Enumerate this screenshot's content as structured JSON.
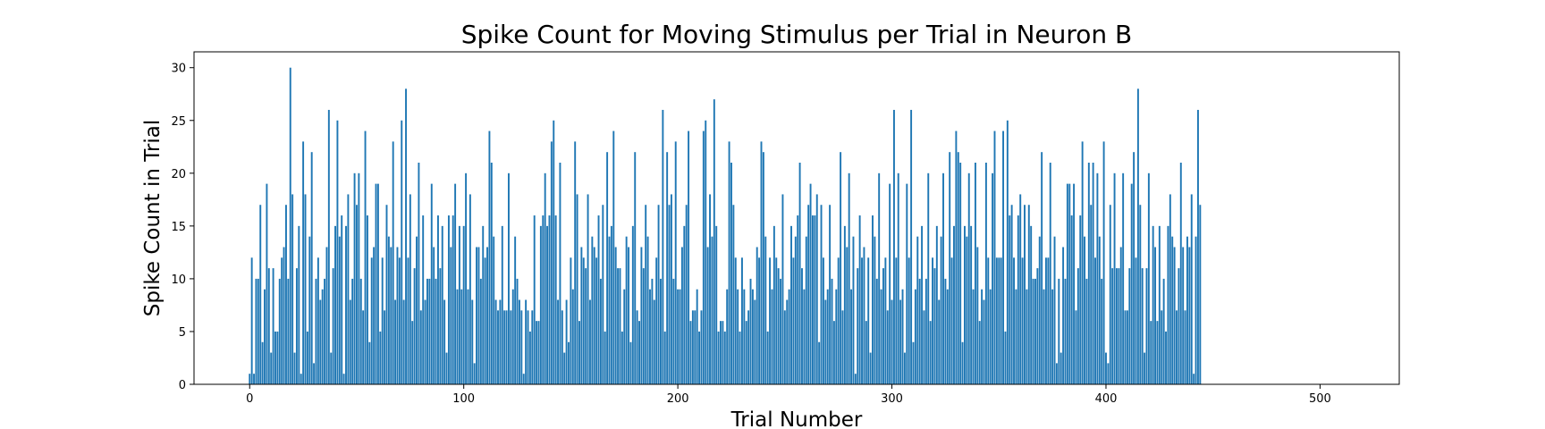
{
  "chart_data": {
    "type": "bar",
    "title": "Spike Count for Moving Stimulus per Trial in Neuron B",
    "xlabel": "Trial Number",
    "ylabel": "Spike Count in Trial",
    "xlim": [
      -26,
      537
    ],
    "ylim": [
      0,
      31.5
    ],
    "x_ticks": [
      0,
      100,
      200,
      300,
      400,
      500
    ],
    "y_ticks": [
      0,
      5,
      10,
      15,
      20,
      25,
      30
    ],
    "bar_color": "#1f77b4",
    "grid": false,
    "x_start": 0,
    "values": [
      1,
      12,
      1,
      10,
      10,
      17,
      4,
      9,
      19,
      11,
      3,
      11,
      5,
      5,
      10,
      12,
      13,
      17,
      10,
      30,
      18,
      3,
      11,
      15,
      1,
      23,
      18,
      5,
      14,
      22,
      2,
      10,
      12,
      8,
      9,
      10,
      13,
      26,
      3,
      11,
      15,
      25,
      14,
      16,
      1,
      15,
      18,
      8,
      10,
      20,
      17,
      20,
      10,
      7,
      24,
      16,
      4,
      12,
      13,
      19,
      19,
      5,
      12,
      7,
      17,
      14,
      13,
      23,
      8,
      13,
      12,
      25,
      8,
      28,
      12,
      18,
      6,
      11,
      14,
      21,
      7,
      16,
      8,
      10,
      10,
      19,
      13,
      10,
      16,
      11,
      15,
      8,
      3,
      16,
      13,
      16,
      19,
      9,
      15,
      9,
      15,
      20,
      9,
      18,
      8,
      2,
      13,
      13,
      10,
      15,
      12,
      13,
      24,
      21,
      14,
      8,
      7,
      8,
      15,
      7,
      7,
      20,
      7,
      9,
      14,
      10,
      8,
      7,
      1,
      8,
      7,
      5,
      7,
      16,
      6,
      6,
      15,
      16,
      20,
      15,
      16,
      23,
      25,
      16,
      8,
      21,
      7,
      3,
      8,
      4,
      12,
      9,
      23,
      18,
      6,
      13,
      12,
      11,
      18,
      8,
      14,
      13,
      12,
      16,
      10,
      17,
      5,
      22,
      14,
      15,
      24,
      13,
      11,
      11,
      5,
      9,
      14,
      13,
      4,
      15,
      22,
      7,
      6,
      13,
      11,
      17,
      14,
      9,
      10,
      8,
      12,
      17,
      10,
      26,
      5,
      22,
      17,
      18,
      10,
      23,
      9,
      9,
      13,
      15,
      17,
      24,
      6,
      7,
      7,
      9,
      5,
      7,
      24,
      25,
      13,
      18,
      14,
      27,
      15,
      5,
      6,
      6,
      5,
      9,
      23,
      21,
      17,
      12,
      9,
      5,
      12,
      9,
      6,
      7,
      10,
      9,
      8,
      13,
      12,
      23,
      22,
      14,
      5,
      12,
      9,
      15,
      12,
      11,
      10,
      18,
      7,
      8,
      9,
      15,
      12,
      14,
      16,
      21,
      11,
      9,
      14,
      17,
      19,
      16,
      16,
      18,
      4,
      17,
      12,
      8,
      9,
      17,
      10,
      6,
      9,
      12,
      22,
      7,
      15,
      13,
      20,
      9,
      14,
      1,
      11,
      16,
      12,
      13,
      6,
      12,
      3,
      16,
      14,
      10,
      20,
      9,
      11,
      12,
      7,
      19,
      8,
      26,
      12,
      20,
      8,
      9,
      3,
      19,
      12,
      26,
      4,
      9,
      14,
      10,
      15,
      7,
      10,
      20,
      6,
      12,
      11,
      15,
      8,
      14,
      20,
      10,
      9,
      22,
      12,
      15,
      24,
      22,
      21,
      4,
      15,
      14,
      20,
      15,
      9,
      21,
      13,
      6,
      9,
      8,
      21,
      12,
      9,
      20,
      24,
      12,
      12,
      12,
      24,
      5,
      25,
      16,
      17,
      12,
      9,
      16,
      18,
      12,
      17,
      9,
      17,
      15,
      10,
      10,
      11,
      14,
      22,
      9,
      12,
      12,
      21,
      9,
      14,
      2,
      10,
      3,
      13,
      10,
      19,
      19,
      16,
      19,
      7,
      11,
      16,
      23,
      14,
      10,
      21,
      17,
      21,
      12,
      20,
      14,
      10,
      23,
      3,
      2,
      17,
      11,
      20,
      11,
      11,
      13,
      20,
      7,
      7,
      11,
      19,
      22,
      12,
      28,
      17,
      11,
      3,
      11,
      20,
      6,
      15,
      13,
      6,
      15,
      7,
      10,
      5,
      15,
      18,
      14,
      13,
      7,
      11,
      21,
      13,
      7,
      14,
      13,
      18,
      1,
      14,
      26,
      17
    ],
    "tick_label_texts": [
      "0",
      "100",
      "200",
      "300",
      "400",
      "500"
    ],
    "y_tick_label_texts": [
      "0",
      "5",
      "10",
      "15",
      "20",
      "25",
      "30"
    ]
  }
}
